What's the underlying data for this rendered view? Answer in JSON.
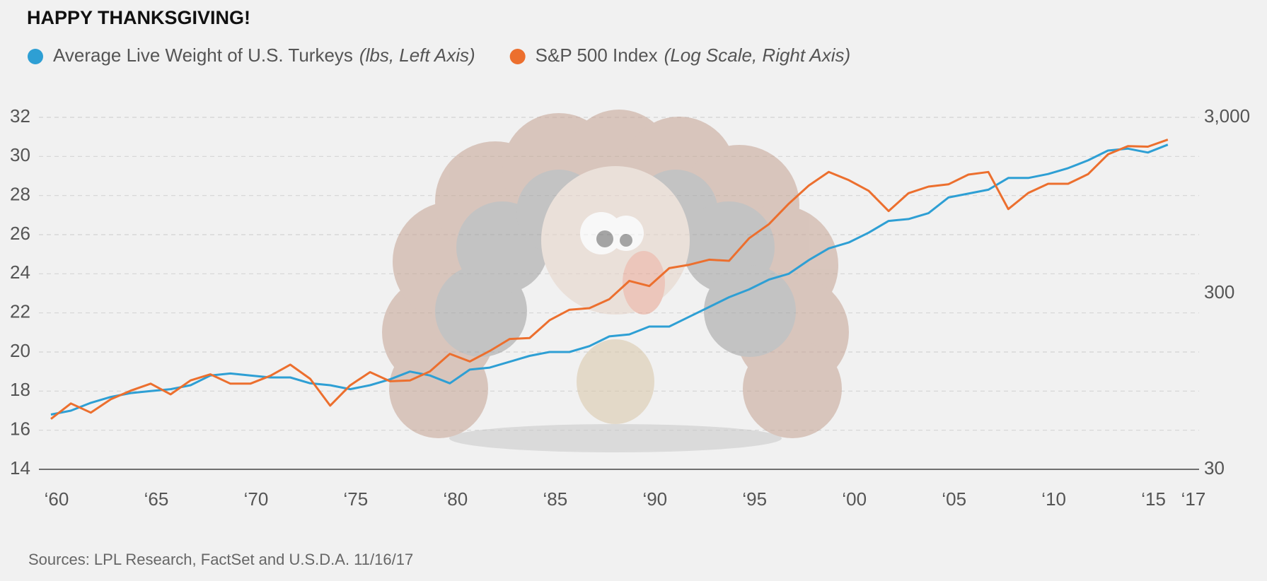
{
  "chart_data": {
    "type": "line",
    "title": "HAPPY THANKSGIVING!",
    "source": "Sources: LPL Research, FactSet and U.S.D.A. 11/16/17",
    "x": [
      1960,
      1961,
      1962,
      1963,
      1964,
      1965,
      1966,
      1967,
      1968,
      1969,
      1970,
      1971,
      1972,
      1973,
      1974,
      1975,
      1976,
      1977,
      1978,
      1979,
      1980,
      1981,
      1982,
      1983,
      1984,
      1985,
      1986,
      1987,
      1988,
      1989,
      1990,
      1991,
      1992,
      1993,
      1994,
      1995,
      1996,
      1997,
      1998,
      1999,
      2000,
      2001,
      2002,
      2003,
      2004,
      2005,
      2006,
      2007,
      2008,
      2009,
      2010,
      2011,
      2012,
      2013,
      2014,
      2015,
      2016
    ],
    "series": [
      {
        "name": "Average Live Weight of U.S. Turkeys",
        "note": "(lbs, Left Axis)",
        "color": "#2e9fd4",
        "axis": "y",
        "values": [
          16.8,
          17.0,
          17.4,
          17.7,
          17.9,
          18.0,
          18.1,
          18.3,
          18.8,
          18.9,
          18.8,
          18.7,
          18.7,
          18.4,
          18.3,
          18.1,
          18.3,
          18.6,
          19.0,
          18.8,
          18.4,
          19.1,
          19.2,
          19.5,
          19.8,
          20.0,
          20.0,
          20.3,
          20.8,
          20.9,
          21.3,
          21.3,
          21.8,
          22.3,
          22.8,
          23.2,
          23.7,
          24.0,
          24.7,
          25.3,
          25.6,
          26.1,
          26.7,
          26.8,
          27.1,
          27.9,
          28.1,
          28.3,
          28.9,
          28.9,
          29.1,
          29.4,
          29.8,
          30.3,
          30.4,
          30.2,
          30.6
        ]
      },
      {
        "name": "S&P 500 Index",
        "note": "(Log Scale, Right Axis)",
        "color": "#ec6f2e",
        "axis": "y2",
        "values": [
          58,
          71,
          63,
          75,
          84,
          92,
          80,
          96,
          104,
          92,
          92,
          102,
          118,
          98,
          69,
          90,
          107,
          95,
          96,
          108,
          136,
          123,
          141,
          165,
          167,
          211,
          242,
          247,
          278,
          353,
          330,
          417,
          436,
          466,
          459,
          616,
          741,
          970,
          1229,
          1469,
          1320,
          1148,
          880,
          1112,
          1212,
          1248,
          1418,
          1468,
          903,
          1115,
          1258,
          1258,
          1426,
          1848,
          2059,
          2044,
          2239
        ]
      }
    ],
    "xlim": [
      1960,
      2017
    ],
    "xticks": [
      {
        "value": 1960,
        "label": "‘60"
      },
      {
        "value": 1965,
        "label": "‘65"
      },
      {
        "value": 1970,
        "label": "‘70"
      },
      {
        "value": 1975,
        "label": "‘75"
      },
      {
        "value": 1980,
        "label": "‘80"
      },
      {
        "value": 1985,
        "label": "‘85"
      },
      {
        "value": 1990,
        "label": "‘90"
      },
      {
        "value": 1995,
        "label": "‘95"
      },
      {
        "value": 2000,
        "label": "‘00"
      },
      {
        "value": 2005,
        "label": "‘05"
      },
      {
        "value": 2010,
        "label": "‘10"
      },
      {
        "value": 2015,
        "label": "‘15"
      },
      {
        "value": 2017,
        "label": "‘17"
      }
    ],
    "ylim": [
      14,
      32
    ],
    "yticks": [
      14,
      16,
      18,
      20,
      22,
      24,
      26,
      28,
      30,
      32
    ],
    "y2lim": [
      30,
      3000
    ],
    "y2ticks": [
      30,
      300,
      {
        "value": 3000,
        "label": "3,000"
      }
    ],
    "y2log": true,
    "grid": true
  }
}
